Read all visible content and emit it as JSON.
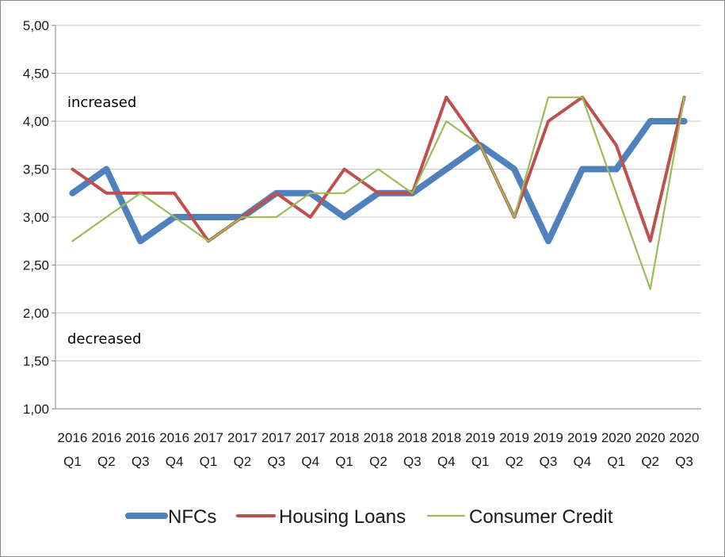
{
  "chart_data": {
    "type": "line",
    "categories": [
      [
        "2016",
        "Q1"
      ],
      [
        "2016",
        "Q2"
      ],
      [
        "2016",
        "Q3"
      ],
      [
        "2016",
        "Q4"
      ],
      [
        "2017",
        "Q1"
      ],
      [
        "2017",
        "Q2"
      ],
      [
        "2017",
        "Q3"
      ],
      [
        "2017",
        "Q4"
      ],
      [
        "2018",
        "Q1"
      ],
      [
        "2018",
        "Q2"
      ],
      [
        "2018",
        "Q3"
      ],
      [
        "2018",
        "Q4"
      ],
      [
        "2019",
        "Q1"
      ],
      [
        "2019",
        "Q2"
      ],
      [
        "2019",
        "Q3"
      ],
      [
        "2019",
        "Q4"
      ],
      [
        "2020",
        "Q1"
      ],
      [
        "2020",
        "Q2"
      ],
      [
        "2020",
        "Q3"
      ]
    ],
    "ylim": [
      1,
      5
    ],
    "yticks": [
      "1,00",
      "1,50",
      "2,00",
      "2,50",
      "3,00",
      "3,50",
      "4,00",
      "4,50",
      "5,00"
    ],
    "grid": true,
    "legend_position": "bottom",
    "annotations": [
      {
        "text": "increased",
        "y": 4.2
      },
      {
        "text": "decreased",
        "y": 1.73
      }
    ],
    "series": [
      {
        "name": "NFCs",
        "color": "#4f81bd",
        "values": [
          3.25,
          3.5,
          2.75,
          3.0,
          3.0,
          3.0,
          3.25,
          3.25,
          3.0,
          3.25,
          3.25,
          3.5,
          3.75,
          3.5,
          2.75,
          3.5,
          3.5,
          4.0,
          4.0
        ]
      },
      {
        "name": "Housing Loans",
        "color": "#c0504d",
        "values": [
          3.5,
          3.25,
          3.25,
          3.25,
          2.75,
          3.0,
          3.25,
          3.0,
          3.5,
          3.25,
          3.25,
          4.25,
          3.75,
          3.0,
          4.0,
          4.25,
          3.75,
          2.75,
          4.25
        ]
      },
      {
        "name": "Consumer Credit",
        "color": "#9bbb59",
        "values": [
          2.75,
          3.0,
          3.25,
          3.0,
          2.75,
          3.0,
          3.0,
          3.25,
          3.25,
          3.5,
          3.25,
          4.0,
          3.75,
          3.0,
          4.25,
          4.25,
          3.25,
          2.25,
          4.25
        ]
      }
    ]
  }
}
